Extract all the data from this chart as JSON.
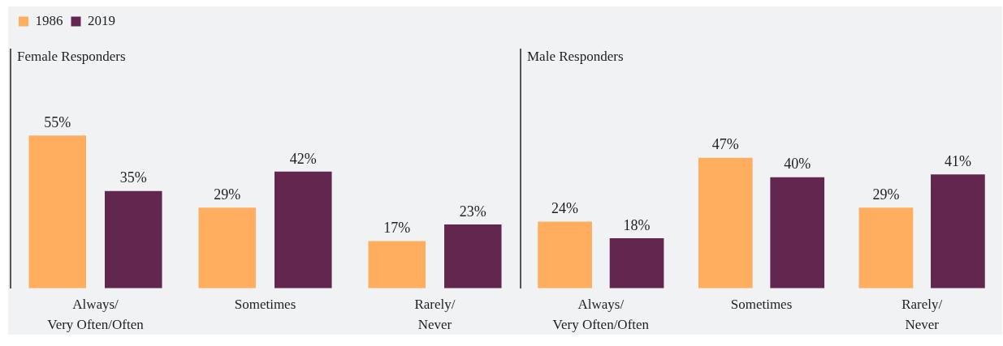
{
  "chart_data": [
    {
      "type": "bar",
      "title": "Female Responders",
      "categories": [
        "Always/\nVery Often/Often",
        "Sometimes",
        "Rarely/\nNever"
      ],
      "series": [
        {
          "name": "1986",
          "color": "#ffad5f",
          "values": [
            55,
            29,
            17
          ],
          "value_labels": [
            "55%",
            "29%",
            "17%"
          ]
        },
        {
          "name": "2019",
          "color": "#62264f",
          "values": [
            35,
            42,
            23
          ],
          "value_labels": [
            "35%",
            "42%",
            "23%"
          ]
        }
      ],
      "ylim": [
        0,
        86
      ],
      "legend": "top left"
    },
    {
      "type": "bar",
      "title": "Male Responders",
      "categories": [
        "Always/\nVery Often/Often",
        "Sometimes",
        "Rarely/\nNever"
      ],
      "series": [
        {
          "color": "#ffad5f",
          "values": [
            24,
            47,
            29
          ],
          "value_labels": [
            "24%",
            "47%",
            "29%"
          ]
        },
        {
          "color": "#62264f",
          "values": [
            18,
            40,
            41
          ],
          "value_labels": [
            "18%",
            "40%",
            "41%"
          ]
        }
      ],
      "ylim": [
        0,
        86
      ]
    }
  ]
}
